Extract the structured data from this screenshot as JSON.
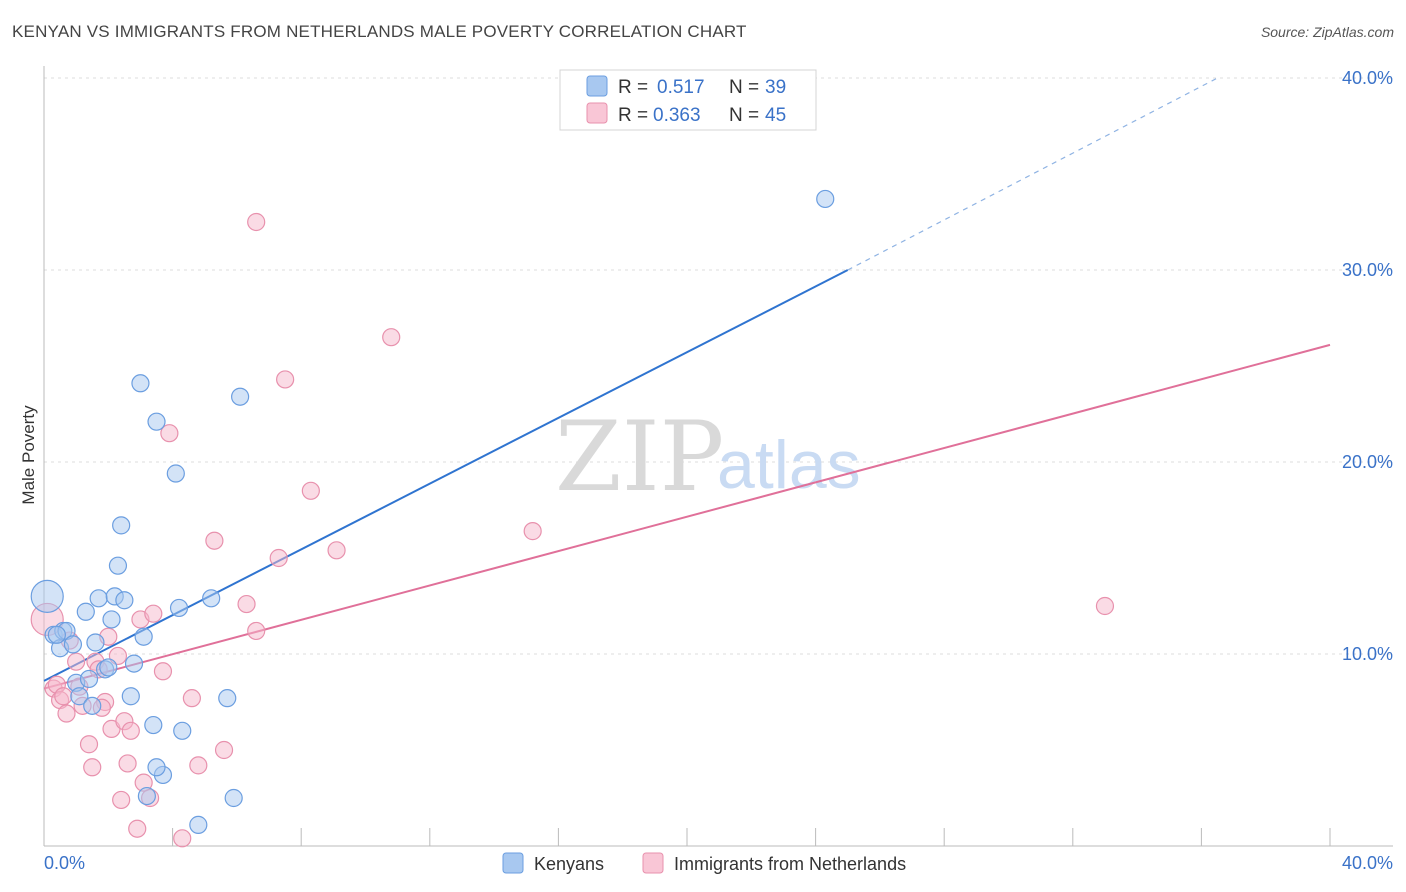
{
  "header": {
    "title": "KENYAN VS IMMIGRANTS FROM NETHERLANDS MALE POVERTY CORRELATION CHART",
    "source": "Source: ZipAtlas.com"
  },
  "watermark": {
    "zip": "ZIP",
    "atlas": "atlas"
  },
  "legend": {
    "kenyans": {
      "r_label": "R =",
      "r_value": "0.517",
      "n_label": "N =",
      "n_value": "39"
    },
    "netherlands": {
      "r_label": "R =",
      "r_value": "0.363",
      "n_label": "N =",
      "n_value": "45"
    }
  },
  "bottom_legend": {
    "kenyans": "Kenyans",
    "netherlands": "Immigrants from Netherlands"
  },
  "colors": {
    "blue_fill": "#a8c8f0",
    "blue_stroke": "#6b9ee0",
    "blue_line": "#2f74d0",
    "pink_fill": "#f6b8cc",
    "pink_stroke": "#e891ad",
    "pink_line": "#e07099"
  },
  "chart_data": {
    "type": "scatter",
    "title": "KENYAN VS IMMIGRANTS FROM NETHERLANDS MALE POVERTY CORRELATION CHART",
    "xlabel": "",
    "ylabel": "Male Poverty",
    "xlim": [
      0,
      40
    ],
    "ylim": [
      0,
      40
    ],
    "x_tick_labels": [
      "0.0%",
      "40.0%"
    ],
    "y_ticks": [
      10,
      20,
      30,
      40
    ],
    "y_tick_labels": [
      "10.0%",
      "20.0%",
      "30.0%",
      "40.0%"
    ],
    "series": [
      {
        "name": "Kenyans",
        "r": 0.517,
        "n": 39,
        "trend": {
          "x0": 0,
          "y0": 8.6,
          "x1": 25,
          "y1": 30.0,
          "dashed_to_x": 36.5,
          "dashed_to_y": 40.0
        },
        "points": [
          {
            "x": 0.1,
            "y": 13.0,
            "size": "large"
          },
          {
            "x": 0.3,
            "y": 11.0
          },
          {
            "x": 0.5,
            "y": 10.3
          },
          {
            "x": 0.6,
            "y": 11.2
          },
          {
            "x": 0.7,
            "y": 11.2
          },
          {
            "x": 0.9,
            "y": 10.5
          },
          {
            "x": 1.0,
            "y": 8.5
          },
          {
            "x": 1.1,
            "y": 7.8
          },
          {
            "x": 1.3,
            "y": 12.2
          },
          {
            "x": 1.4,
            "y": 8.7
          },
          {
            "x": 1.5,
            "y": 7.3
          },
          {
            "x": 1.6,
            "y": 10.6
          },
          {
            "x": 1.7,
            "y": 12.9
          },
          {
            "x": 1.9,
            "y": 9.2
          },
          {
            "x": 2.0,
            "y": 9.3
          },
          {
            "x": 2.1,
            "y": 11.8
          },
          {
            "x": 2.2,
            "y": 13.0
          },
          {
            "x": 2.3,
            "y": 14.6
          },
          {
            "x": 2.4,
            "y": 16.7
          },
          {
            "x": 2.7,
            "y": 7.8
          },
          {
            "x": 2.8,
            "y": 9.5
          },
          {
            "x": 3.0,
            "y": 24.1
          },
          {
            "x": 3.1,
            "y": 10.9
          },
          {
            "x": 3.2,
            "y": 2.6
          },
          {
            "x": 3.4,
            "y": 6.3
          },
          {
            "x": 3.5,
            "y": 22.1
          },
          {
            "x": 3.7,
            "y": 3.7
          },
          {
            "x": 4.1,
            "y": 19.4
          },
          {
            "x": 4.2,
            "y": 12.4
          },
          {
            "x": 4.3,
            "y": 6.0
          },
          {
            "x": 4.8,
            "y": 1.1
          },
          {
            "x": 5.2,
            "y": 12.9
          },
          {
            "x": 5.7,
            "y": 7.7
          },
          {
            "x": 5.9,
            "y": 2.5
          },
          {
            "x": 6.1,
            "y": 23.4
          },
          {
            "x": 3.5,
            "y": 4.1
          },
          {
            "x": 2.5,
            "y": 12.8
          },
          {
            "x": 0.4,
            "y": 11.0
          },
          {
            "x": 24.3,
            "y": 33.7
          }
        ]
      },
      {
        "name": "Immigrants from Netherlands",
        "r": 0.363,
        "n": 45,
        "trend": {
          "x0": 0,
          "y0": 8.2,
          "x1": 40,
          "y1": 26.1
        },
        "points": [
          {
            "x": 0.1,
            "y": 11.8,
            "size": "large"
          },
          {
            "x": 0.3,
            "y": 8.2
          },
          {
            "x": 0.4,
            "y": 8.4
          },
          {
            "x": 0.5,
            "y": 7.6
          },
          {
            "x": 0.6,
            "y": 7.8
          },
          {
            "x": 0.7,
            "y": 6.9
          },
          {
            "x": 0.8,
            "y": 10.7
          },
          {
            "x": 1.0,
            "y": 9.6
          },
          {
            "x": 1.1,
            "y": 8.3
          },
          {
            "x": 1.2,
            "y": 7.3
          },
          {
            "x": 1.4,
            "y": 5.3
          },
          {
            "x": 1.5,
            "y": 4.1
          },
          {
            "x": 1.6,
            "y": 9.6
          },
          {
            "x": 1.7,
            "y": 9.2
          },
          {
            "x": 1.9,
            "y": 7.5
          },
          {
            "x": 2.0,
            "y": 10.9
          },
          {
            "x": 2.1,
            "y": 6.1
          },
          {
            "x": 2.3,
            "y": 9.9
          },
          {
            "x": 2.4,
            "y": 2.4
          },
          {
            "x": 2.5,
            "y": 6.5
          },
          {
            "x": 2.7,
            "y": 6.0
          },
          {
            "x": 2.9,
            "y": 0.9
          },
          {
            "x": 3.0,
            "y": 11.8
          },
          {
            "x": 3.1,
            "y": 3.3
          },
          {
            "x": 3.3,
            "y": 2.5
          },
          {
            "x": 3.4,
            "y": 12.1
          },
          {
            "x": 3.7,
            "y": 9.1
          },
          {
            "x": 3.9,
            "y": 21.5
          },
          {
            "x": 4.3,
            "y": 0.4
          },
          {
            "x": 4.6,
            "y": 7.7
          },
          {
            "x": 4.8,
            "y": 4.2
          },
          {
            "x": 5.6,
            "y": 5.0
          },
          {
            "x": 5.3,
            "y": 15.9
          },
          {
            "x": 6.3,
            "y": 12.6
          },
          {
            "x": 6.6,
            "y": 11.2
          },
          {
            "x": 6.6,
            "y": 32.5
          },
          {
            "x": 7.3,
            "y": 15.0
          },
          {
            "x": 7.5,
            "y": 24.3
          },
          {
            "x": 8.3,
            "y": 18.5
          },
          {
            "x": 9.1,
            "y": 15.4
          },
          {
            "x": 10.8,
            "y": 26.5
          },
          {
            "x": 15.2,
            "y": 16.4
          },
          {
            "x": 33.0,
            "y": 12.5
          },
          {
            "x": 2.6,
            "y": 4.3
          },
          {
            "x": 1.8,
            "y": 7.2
          }
        ]
      }
    ]
  }
}
